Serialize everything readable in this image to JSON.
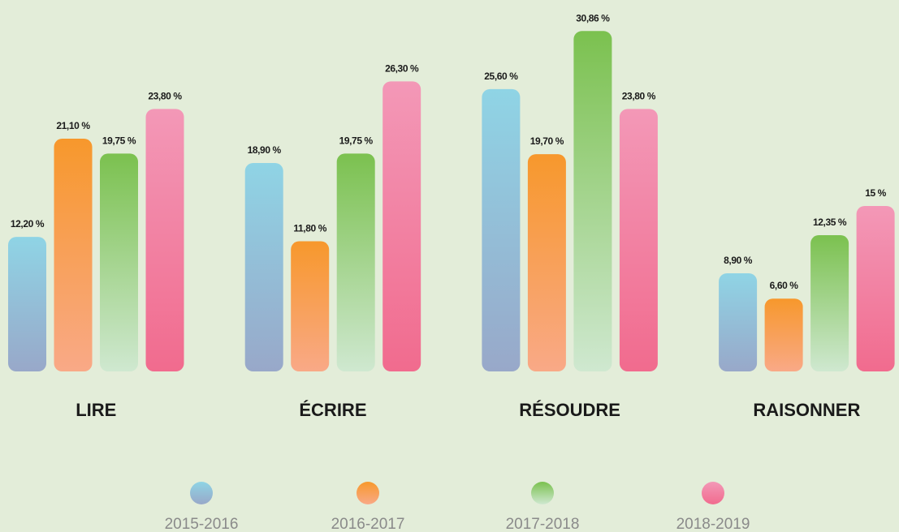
{
  "chart_data": {
    "type": "bar",
    "categories": [
      "LIRE",
      "ÉCRIRE",
      "RÉSOUDRE",
      "RAISONNER"
    ],
    "series": [
      {
        "name": "2015-2016",
        "color": [
          "#8fd4e5",
          "#98a8c9"
        ],
        "values": [
          12.2,
          18.9,
          25.6,
          8.9
        ],
        "value_labels": [
          "12,20 %",
          "18,90 %",
          "25,60 %",
          "8,90 %"
        ]
      },
      {
        "name": "2016-2017",
        "color": [
          "#f7982c",
          "#f9a987"
        ],
        "values": [
          21.1,
          11.8,
          19.7,
          6.6
        ],
        "value_labels": [
          "21,10 %",
          "11,80 %",
          "19,70 %",
          "6,60 %"
        ]
      },
      {
        "name": "2017-2018",
        "color": [
          "#7bc14f",
          "#cfe8d0"
        ],
        "values": [
          19.75,
          19.75,
          30.86,
          12.35
        ],
        "value_labels": [
          "19,75 %",
          "19,75 %",
          "30,86 %",
          "12,35 %"
        ]
      },
      {
        "name": "2018-2019",
        "color": [
          "#f398b7",
          "#f16b8e"
        ],
        "values": [
          23.8,
          26.3,
          23.8,
          15
        ],
        "value_labels": [
          "23,80 %",
          "26,30 %",
          "23,80 %",
          "15 %"
        ]
      }
    ]
  }
}
